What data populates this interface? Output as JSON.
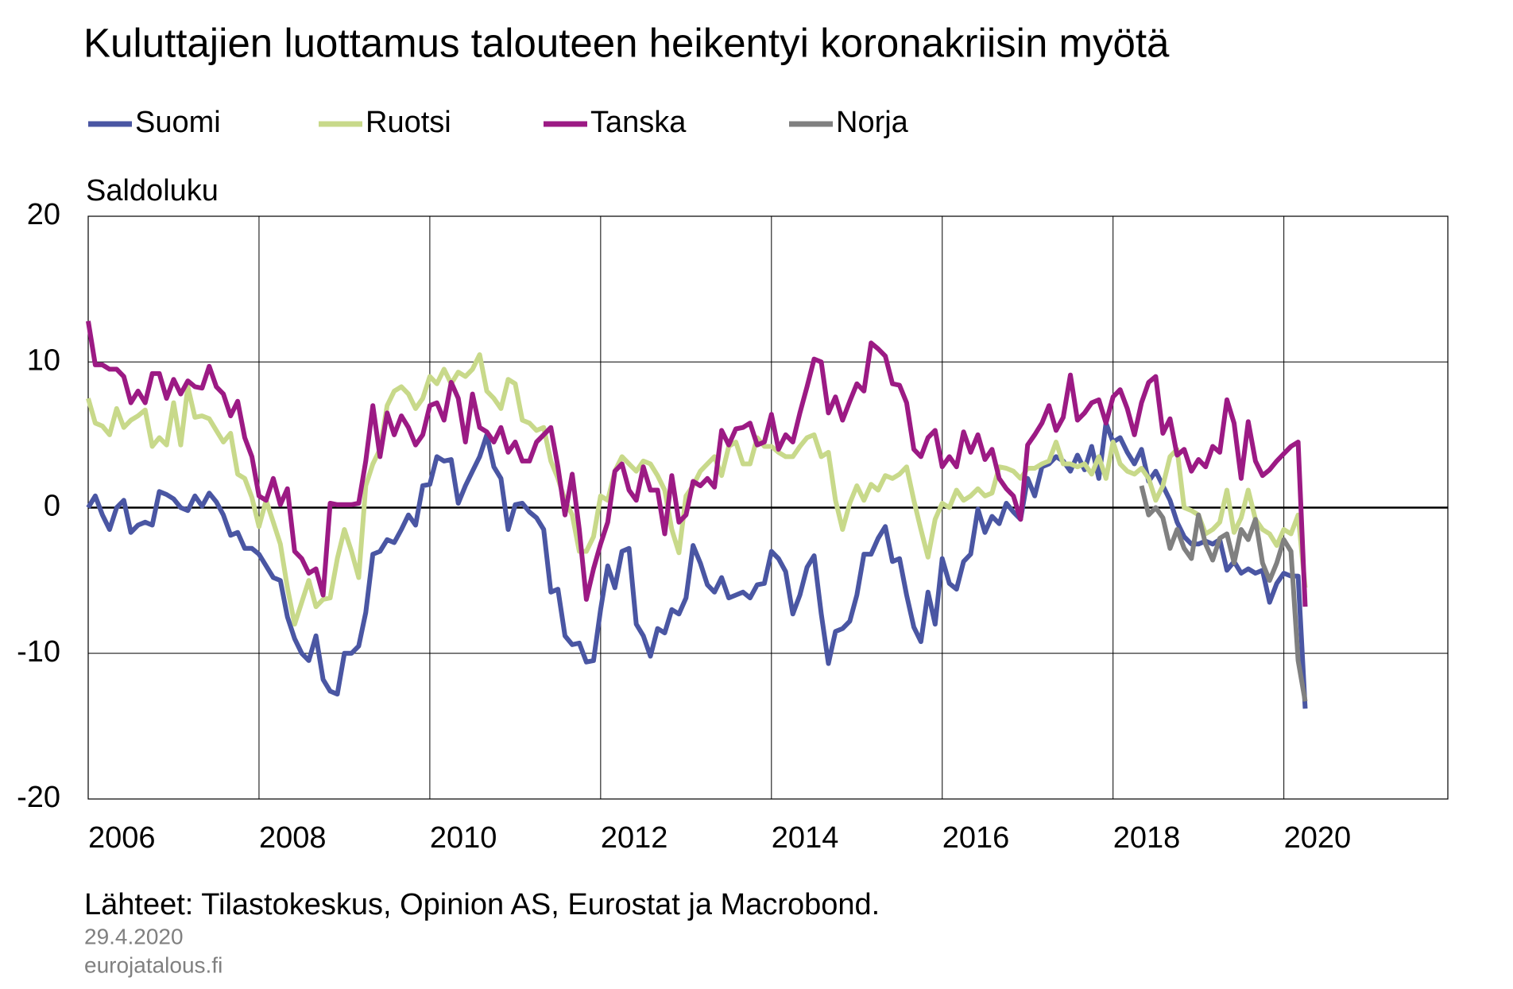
{
  "chart_data": {
    "type": "line",
    "title": "Kuluttajien luottamus talouteen heikentyi koronakriisin myötä",
    "y_label": "Saldoluku",
    "source": "Lähteet: Tilastokeskus, Opinion AS, Eurostat ja Macrobond.",
    "date": "29.4.2020",
    "website": "eurojatalous.fi",
    "xlim": [
      2006,
      2021.92
    ],
    "xticks": [
      2006,
      2008,
      2010,
      2012,
      2014,
      2016,
      2018,
      2020
    ],
    "ylim": [
      -20,
      20
    ],
    "yticks": [
      -20,
      -10,
      0,
      10,
      20
    ],
    "grid": true,
    "zero_line": true,
    "x": [
      2006,
      2006.083,
      2006.167,
      2006.25,
      2006.333,
      2006.417,
      2006.5,
      2006.583,
      2006.667,
      2006.75,
      2006.833,
      2006.917,
      2007,
      2007.083,
      2007.167,
      2007.25,
      2007.333,
      2007.417,
      2007.5,
      2007.583,
      2007.667,
      2007.75,
      2007.833,
      2007.917,
      2008,
      2008.083,
      2008.167,
      2008.25,
      2008.333,
      2008.417,
      2008.5,
      2008.583,
      2008.667,
      2008.75,
      2008.833,
      2008.917,
      2009,
      2009.083,
      2009.167,
      2009.25,
      2009.333,
      2009.417,
      2009.5,
      2009.583,
      2009.667,
      2009.75,
      2009.833,
      2009.917,
      2010,
      2010.083,
      2010.167,
      2010.25,
      2010.333,
      2010.417,
      2010.5,
      2010.583,
      2010.667,
      2010.75,
      2010.833,
      2010.917,
      2011,
      2011.083,
      2011.167,
      2011.25,
      2011.333,
      2011.417,
      2011.5,
      2011.583,
      2011.667,
      2011.75,
      2011.833,
      2011.917,
      2012,
      2012.083,
      2012.167,
      2012.25,
      2012.333,
      2012.417,
      2012.5,
      2012.583,
      2012.667,
      2012.75,
      2012.833,
      2012.917,
      2013,
      2013.083,
      2013.167,
      2013.25,
      2013.333,
      2013.417,
      2013.5,
      2013.583,
      2013.667,
      2013.75,
      2013.833,
      2013.917,
      2014,
      2014.083,
      2014.167,
      2014.25,
      2014.333,
      2014.417,
      2014.5,
      2014.583,
      2014.667,
      2014.75,
      2014.833,
      2014.917,
      2015,
      2015.083,
      2015.167,
      2015.25,
      2015.333,
      2015.417,
      2015.5,
      2015.583,
      2015.667,
      2015.75,
      2015.833,
      2015.917,
      2016,
      2016.083,
      2016.167,
      2016.25,
      2016.333,
      2016.417,
      2016.5,
      2016.583,
      2016.667,
      2016.75,
      2016.833,
      2016.917,
      2017,
      2017.083,
      2017.167,
      2017.25,
      2017.333,
      2017.417,
      2017.5,
      2017.583,
      2017.667,
      2017.75,
      2017.833,
      2017.917,
      2018,
      2018.083,
      2018.167,
      2018.25,
      2018.333,
      2018.417,
      2018.5,
      2018.583,
      2018.667,
      2018.75,
      2018.833,
      2018.917,
      2019,
      2019.083,
      2019.167,
      2019.25,
      2019.333,
      2019.417,
      2019.5,
      2019.583,
      2019.667,
      2019.75,
      2019.833,
      2019.917,
      2020,
      2020.083,
      2020.167,
      2020.25
    ],
    "series": [
      {
        "name": "Suomi",
        "color": "#4a56a3",
        "values": [
          0,
          0.8,
          -0.5,
          -1.5,
          0,
          0.5,
          -1.7,
          -1.2,
          -1,
          -1.2,
          1.1,
          0.9,
          0.6,
          0,
          -0.2,
          0.8,
          0.1,
          1,
          0.4,
          -0.5,
          -1.9,
          -1.7,
          -2.8,
          -2.8,
          -3.2,
          -4,
          -4.8,
          -5,
          -7.5,
          -9,
          -10,
          -10.5,
          -8.8,
          -11.8,
          -12.6,
          -12.8,
          -10,
          -10,
          -9.5,
          -7.2,
          -3.2,
          -3,
          -2.2,
          -2.4,
          -1.5,
          -0.5,
          -1.2,
          1.5,
          1.6,
          3.5,
          3.2,
          3.3,
          0.3,
          1.5,
          2.5,
          3.5,
          5,
          2.8,
          2,
          -1.5,
          0.2,
          0.3,
          -0.3,
          -0.7,
          -1.5,
          -5.8,
          -5.6,
          -8.8,
          -9.4,
          -9.3,
          -10.6,
          -10.5,
          -7,
          -4,
          -5.5,
          -3,
          -2.8,
          -8,
          -8.8,
          -10.2,
          -8.3,
          -8.6,
          -7,
          -7.3,
          -6.2,
          -2.6,
          -3.8,
          -5.3,
          -5.8,
          -4.8,
          -6.2,
          -6,
          -5.8,
          -6.2,
          -5.3,
          -5.2,
          -3,
          -3.5,
          -4.4,
          -7.3,
          -6,
          -4.1,
          -3.3,
          -7.3,
          -10.7,
          -8.5,
          -8.3,
          -7.8,
          -6,
          -3.2,
          -3.2,
          -2.1,
          -1.3,
          -3.7,
          -3.5,
          -6,
          -8.2,
          -9.2,
          -5.8,
          -8,
          -3.5,
          -5.2,
          -5.6,
          -3.7,
          -3.2,
          -0.1,
          -1.7,
          -0.6,
          -1.1,
          0.3,
          -0.3,
          -0.8,
          2,
          0.8,
          2.8,
          3,
          3.5,
          3.2,
          2.5,
          3.6,
          2.6,
          4.2,
          2,
          5.8,
          4.5,
          4.8,
          3.8,
          3,
          4,
          1.8,
          2.5,
          1.5,
          0.5,
          -1,
          -2,
          -2.5,
          -2.5,
          -2.3,
          -2.5,
          -2.2,
          -4.3,
          -3.7,
          -4.5,
          -4.2,
          -4.5,
          -4.3,
          -6.5,
          -5.2,
          -4.5,
          -4.7,
          -4.7,
          -13.8
        ]
      },
      {
        "name": "Ruotsi",
        "color": "#c8d98a",
        "values": [
          7.5,
          5.8,
          5.6,
          5,
          6.8,
          5.5,
          6,
          6.3,
          6.7,
          4.2,
          4.8,
          4.3,
          7.2,
          4.3,
          8.3,
          6.2,
          6.3,
          6.1,
          5.3,
          4.5,
          5.1,
          2.3,
          2,
          0.7,
          -1.3,
          0.5,
          -1,
          -2.5,
          -5.5,
          -8,
          -6.5,
          -5,
          -6.8,
          -6.3,
          -6.2,
          -3.5,
          -1.5,
          -3,
          -4.8,
          1.5,
          3,
          4,
          7,
          8,
          8.3,
          7.8,
          6.8,
          7.5,
          9,
          8.5,
          9.5,
          8.5,
          9.3,
          9,
          9.5,
          10.5,
          8,
          7.5,
          6.8,
          8.8,
          8.5,
          6,
          5.8,
          5.3,
          5.5,
          3.2,
          2,
          0.5,
          -0.5,
          -3,
          -3,
          -2,
          0.8,
          0.5,
          2.5,
          3.5,
          3,
          2.5,
          3.2,
          3,
          2.2,
          1.2,
          -1.5,
          -3.1,
          0.8,
          1.5,
          2.5,
          3,
          3.5,
          2.2,
          4.2,
          4.5,
          3,
          3,
          4.8,
          4.2,
          4.2,
          3.8,
          3.5,
          3.5,
          4.2,
          4.8,
          5,
          3.5,
          3.8,
          0.5,
          -1.5,
          0.3,
          1.5,
          0.5,
          1.6,
          1.2,
          2.2,
          2,
          2.3,
          2.8,
          0.5,
          -1.5,
          -3.4,
          -0.8,
          0.3,
          0,
          1.2,
          0.5,
          0.8,
          1.3,
          0.8,
          1,
          2.8,
          2.7,
          2.5,
          2,
          2.7,
          2.7,
          3,
          3.2,
          4.5,
          3,
          3,
          2.8,
          3,
          2.3,
          3.5,
          2,
          4.5,
          3,
          2.5,
          2.3,
          2.7,
          2,
          0.5,
          1.5,
          3.5,
          4,
          0,
          -0.2,
          -0.5,
          -1.8,
          -1.5,
          -1,
          1.2,
          -1.7,
          -0.7,
          1.2,
          -0.8,
          -1.5,
          -1.8,
          -2.6,
          -1.5,
          -1.8,
          -0.5,
          -5.5
        ]
      },
      {
        "name": "Tanska",
        "color": "#9c1a84",
        "values": [
          12.8,
          9.8,
          9.8,
          9.5,
          9.5,
          9,
          7.2,
          8,
          7.2,
          9.2,
          9.2,
          7.5,
          8.8,
          7.8,
          8.7,
          8.3,
          8.2,
          9.7,
          8.3,
          7.8,
          6.3,
          7.3,
          4.8,
          3.5,
          0.8,
          0.5,
          2,
          0.2,
          1.3,
          -3,
          -3.5,
          -4.5,
          -4.2,
          -6,
          0.3,
          0.2,
          0.2,
          0.2,
          0.3,
          3.2,
          7,
          3.5,
          6.5,
          5,
          6.3,
          5.5,
          4.3,
          5,
          7,
          7.2,
          6,
          8.6,
          7.5,
          4.5,
          7.8,
          5.5,
          5.2,
          4.5,
          5.5,
          3.8,
          4.5,
          3.2,
          3.2,
          4.5,
          5,
          5.5,
          2.8,
          -0.5,
          2.3,
          -1.5,
          -6.3,
          -4.2,
          -2.5,
          -1,
          2.5,
          3,
          1.2,
          0.5,
          2.8,
          1.2,
          1.2,
          -1.8,
          2.2,
          -1,
          -0.5,
          1.8,
          1.5,
          2,
          1.4,
          5.3,
          4.3,
          5.4,
          5.5,
          5.8,
          4.3,
          4.5,
          6.4,
          4,
          5,
          4.5,
          6.5,
          8.3,
          10.2,
          10,
          6.5,
          7.6,
          6,
          7.3,
          8.5,
          8,
          11.3,
          10.9,
          10.4,
          8.5,
          8.4,
          7.2,
          4,
          3.5,
          4.8,
          5.3,
          2.8,
          3.5,
          2.8,
          5.2,
          3.8,
          5,
          3.3,
          4,
          2,
          1.3,
          0.8,
          -0.8,
          4.3,
          5,
          5.8,
          7,
          5.3,
          6.2,
          9.1,
          6,
          6.5,
          7.2,
          7.4,
          5.8,
          7.6,
          8.1,
          6.8,
          5,
          7.2,
          8.6,
          9,
          5.1,
          6.1,
          3.6,
          4,
          2.5,
          3.3,
          2.8,
          4.2,
          3.8,
          7.4,
          5.8,
          2,
          5.9,
          3.2,
          2.2,
          2.6,
          3.2,
          3.7,
          4.2,
          4.5,
          -6.8
        ]
      },
      {
        "name": "Norja",
        "color": "#808080",
        "values": [
          null,
          null,
          null,
          null,
          null,
          null,
          null,
          null,
          null,
          null,
          null,
          null,
          null,
          null,
          null,
          null,
          null,
          null,
          null,
          null,
          null,
          null,
          null,
          null,
          null,
          null,
          null,
          null,
          null,
          null,
          null,
          null,
          null,
          null,
          null,
          null,
          null,
          null,
          null,
          null,
          null,
          null,
          null,
          null,
          null,
          null,
          null,
          null,
          null,
          null,
          null,
          null,
          null,
          null,
          null,
          null,
          null,
          null,
          null,
          null,
          null,
          null,
          null,
          null,
          null,
          null,
          null,
          null,
          null,
          null,
          null,
          null,
          null,
          null,
          null,
          null,
          null,
          null,
          null,
          null,
          null,
          null,
          null,
          null,
          null,
          null,
          null,
          null,
          null,
          null,
          null,
          null,
          null,
          null,
          null,
          null,
          null,
          null,
          null,
          null,
          null,
          null,
          null,
          null,
          null,
          null,
          null,
          null,
          null,
          null,
          null,
          null,
          null,
          null,
          null,
          null,
          null,
          null,
          null,
          null,
          null,
          null,
          null,
          null,
          null,
          null,
          null,
          null,
          null,
          null,
          null,
          null,
          null,
          null,
          null,
          null,
          null,
          null,
          null,
          null,
          null,
          null,
          null,
          null,
          null,
          null,
          null,
          null,
          1.5,
          -0.5,
          0,
          -0.7,
          -2.8,
          -1.5,
          -2.8,
          -3.5,
          -0.5,
          -2.5,
          -3.6,
          -2.1,
          -1.8,
          -3.8,
          -1.5,
          -2.2,
          -0.8,
          -3.8,
          -5,
          -3.8,
          -2.2,
          -3,
          -10.5,
          -13.3
        ]
      }
    ]
  }
}
